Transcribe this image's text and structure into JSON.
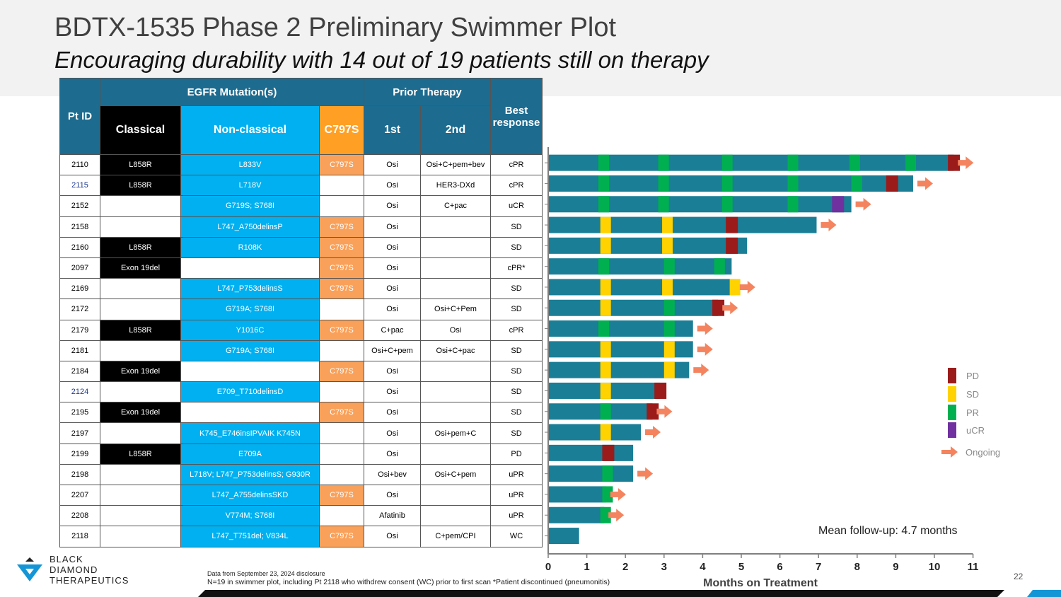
{
  "title": "BDTX-1535 Phase 2 Preliminary Swimmer Plot",
  "subtitle": "Encouraging durability with 14 out of 19 patients still on therapy",
  "table": {
    "headers": {
      "pt_id": "Pt ID",
      "egfr": "EGFR Mutation(s)",
      "prior": "Prior Therapy",
      "best": "Best response",
      "classical": "Classical",
      "nonclassical": "Non-classical",
      "c797s": "C797S",
      "first": "1st",
      "second": "2nd"
    },
    "rows": [
      {
        "id": "2110",
        "classical": "L858R",
        "nonclassical": "L833V",
        "c797s": "C797S",
        "first": "Osi",
        "second": "Osi+C+pem+bev",
        "best": "cPR"
      },
      {
        "id": "2115",
        "classical": "L858R",
        "nonclassical": "L718V",
        "c797s": "",
        "first": "Osi",
        "second": "HER3-DXd",
        "best": "cPR"
      },
      {
        "id": "2152",
        "classical": "",
        "nonclassical": "G719S; S768I",
        "c797s": "",
        "first": "Osi",
        "second": "C+pac",
        "best": "uCR"
      },
      {
        "id": "2158",
        "classical": "",
        "nonclassical": "L747_A750delinsP",
        "c797s": "C797S",
        "first": "Osi",
        "second": "",
        "best": "SD"
      },
      {
        "id": "2160",
        "classical": "L858R",
        "nonclassical": "R108K",
        "c797s": "C797S",
        "first": "Osi",
        "second": "",
        "best": "SD"
      },
      {
        "id": "2097",
        "classical": "Exon 19del",
        "nonclassical": "",
        "c797s": "C797S",
        "first": "Osi",
        "second": "",
        "best": "cPR*"
      },
      {
        "id": "2169",
        "classical": "",
        "nonclassical": "L747_P753delinsS",
        "c797s": "C797S",
        "first": "Osi",
        "second": "",
        "best": "SD"
      },
      {
        "id": "2172",
        "classical": "",
        "nonclassical": "G719A; S768I",
        "c797s": "",
        "first": "Osi",
        "second": "Osi+C+Pem",
        "best": "SD"
      },
      {
        "id": "2179",
        "classical": "L858R",
        "nonclassical": "Y1016C",
        "c797s": "C797S",
        "first": "C+pac",
        "second": "Osi",
        "best": "cPR"
      },
      {
        "id": "2181",
        "classical": "",
        "nonclassical": "G719A; S768I",
        "c797s": "",
        "first": "Osi+C+pem",
        "second": "Osi+C+pac",
        "best": "SD"
      },
      {
        "id": "2184",
        "classical": "Exon 19del",
        "nonclassical": "",
        "c797s": "C797S",
        "first": "Osi",
        "second": "",
        "best": "SD"
      },
      {
        "id": "2124",
        "classical": "",
        "nonclassical": "E709_T710delinsD",
        "c797s": "",
        "first": "Osi",
        "second": "",
        "best": "SD"
      },
      {
        "id": "2195",
        "classical": "Exon 19del",
        "nonclassical": "",
        "c797s": "C797S",
        "first": "Osi",
        "second": "",
        "best": "SD"
      },
      {
        "id": "2197",
        "classical": "",
        "nonclassical": "K745_E746insIPVAIK K745N",
        "c797s": "",
        "first": "Osi",
        "second": "Osi+pem+C",
        "best": "SD"
      },
      {
        "id": "2199",
        "classical": "L858R",
        "nonclassical": "E709A",
        "c797s": "",
        "first": "Osi",
        "second": "",
        "best": "PD"
      },
      {
        "id": "2198",
        "classical": "",
        "nonclassical": "L718V; L747_P753delinsS; G930R",
        "c797s": "",
        "first": "Osi+bev",
        "second": "Osi+C+pem",
        "best": "uPR"
      },
      {
        "id": "2207",
        "classical": "",
        "nonclassical": "L747_A755delinsSKD",
        "c797s": "C797S",
        "first": "Osi",
        "second": "",
        "best": "uPR"
      },
      {
        "id": "2208",
        "classical": "",
        "nonclassical": "V774M; S768I",
        "c797s": "",
        "first": "Afatinib",
        "second": "",
        "best": "uPR"
      },
      {
        "id": "2118",
        "classical": "",
        "nonclassical": "L747_T751del; V834L",
        "c797s": "C797S",
        "first": "Osi",
        "second": "C+pem/CPI",
        "best": "WC"
      }
    ]
  },
  "chart_data": {
    "type": "swimmer",
    "xlabel": "Months on Treatment",
    "xlim": [
      0,
      11
    ],
    "ticks": [
      "0",
      "1",
      "2",
      "3",
      "4",
      "5",
      "6",
      "7",
      "8",
      "9",
      "10",
      "11"
    ],
    "colors": {
      "bar": "#1a7e96",
      "PD": "#9b1b1b",
      "SD": "#ffd200",
      "PR": "#00b050",
      "uCR": "#7030a0",
      "arrow": "#f4845f"
    },
    "patients": [
      {
        "id": "2110",
        "duration": 10.5,
        "ongoing": true,
        "events": [
          {
            "t": 1.3,
            "type": "PR"
          },
          {
            "t": 2.85,
            "type": "PR"
          },
          {
            "t": 4.5,
            "type": "PR"
          },
          {
            "t": 6.2,
            "type": "PR"
          },
          {
            "t": 7.8,
            "type": "PR"
          },
          {
            "t": 9.25,
            "type": "PR"
          },
          {
            "t": 10.35,
            "type": "PD"
          }
        ]
      },
      {
        "id": "2115",
        "duration": 9.45,
        "ongoing": true,
        "events": [
          {
            "t": 1.3,
            "type": "PR"
          },
          {
            "t": 2.85,
            "type": "PR"
          },
          {
            "t": 4.5,
            "type": "PR"
          },
          {
            "t": 6.2,
            "type": "PR"
          },
          {
            "t": 7.85,
            "type": "PR"
          },
          {
            "t": 8.75,
            "type": "PD"
          }
        ]
      },
      {
        "id": "2152",
        "duration": 7.85,
        "ongoing": true,
        "events": [
          {
            "t": 1.3,
            "type": "PR"
          },
          {
            "t": 2.85,
            "type": "PR"
          },
          {
            "t": 4.5,
            "type": "PR"
          },
          {
            "t": 6.2,
            "type": "PR"
          },
          {
            "t": 7.35,
            "type": "uCR"
          }
        ]
      },
      {
        "id": "2158",
        "duration": 6.95,
        "ongoing": true,
        "events": [
          {
            "t": 1.35,
            "type": "SD"
          },
          {
            "t": 2.95,
            "type": "SD"
          },
          {
            "t": 4.6,
            "type": "PD"
          }
        ]
      },
      {
        "id": "2160",
        "duration": 5.15,
        "ongoing": false,
        "events": [
          {
            "t": 1.35,
            "type": "SD"
          },
          {
            "t": 2.95,
            "type": "SD"
          },
          {
            "t": 4.6,
            "type": "PD"
          }
        ]
      },
      {
        "id": "2097",
        "duration": 4.75,
        "ongoing": false,
        "events": [
          {
            "t": 1.3,
            "type": "PR"
          },
          {
            "t": 3.0,
            "type": "PR"
          },
          {
            "t": 4.3,
            "type": "PR"
          }
        ]
      },
      {
        "id": "2169",
        "duration": 4.85,
        "ongoing": true,
        "events": [
          {
            "t": 1.35,
            "type": "SD"
          },
          {
            "t": 2.95,
            "type": "SD"
          },
          {
            "t": 4.7,
            "type": "SD"
          }
        ]
      },
      {
        "id": "2172",
        "duration": 4.4,
        "ongoing": true,
        "events": [
          {
            "t": 1.35,
            "type": "SD"
          },
          {
            "t": 3.0,
            "type": "PR"
          },
          {
            "t": 4.25,
            "type": "PD"
          }
        ]
      },
      {
        "id": "2179",
        "duration": 3.75,
        "ongoing": true,
        "events": [
          {
            "t": 1.3,
            "type": "PR"
          },
          {
            "t": 3.0,
            "type": "PR"
          }
        ]
      },
      {
        "id": "2181",
        "duration": 3.75,
        "ongoing": true,
        "events": [
          {
            "t": 1.35,
            "type": "SD"
          },
          {
            "t": 3.0,
            "type": "SD"
          }
        ]
      },
      {
        "id": "2184",
        "duration": 3.65,
        "ongoing": true,
        "events": [
          {
            "t": 1.35,
            "type": "SD"
          },
          {
            "t": 3.0,
            "type": "SD"
          }
        ]
      },
      {
        "id": "2124",
        "duration": 2.9,
        "ongoing": false,
        "events": [
          {
            "t": 1.35,
            "type": "SD"
          },
          {
            "t": 2.75,
            "type": "PD"
          }
        ]
      },
      {
        "id": "2195",
        "duration": 2.7,
        "ongoing": true,
        "events": [
          {
            "t": 1.35,
            "type": "PR"
          },
          {
            "t": 2.55,
            "type": "PD"
          }
        ]
      },
      {
        "id": "2197",
        "duration": 2.4,
        "ongoing": true,
        "events": [
          {
            "t": 1.35,
            "type": "SD"
          }
        ]
      },
      {
        "id": "2199",
        "duration": 2.2,
        "ongoing": false,
        "events": [
          {
            "t": 1.4,
            "type": "PD"
          }
        ]
      },
      {
        "id": "2198",
        "duration": 2.2,
        "ongoing": true,
        "events": [
          {
            "t": 1.4,
            "type": "PR"
          }
        ]
      },
      {
        "id": "2207",
        "duration": 1.5,
        "ongoing": true,
        "events": [
          {
            "t": 1.4,
            "type": "PR"
          }
        ]
      },
      {
        "id": "2208",
        "duration": 1.45,
        "ongoing": true,
        "events": [
          {
            "t": 1.35,
            "type": "PR"
          }
        ]
      },
      {
        "id": "2118",
        "duration": 0.8,
        "ongoing": false,
        "events": []
      }
    ],
    "legend": [
      {
        "label": "PD",
        "type": "PD"
      },
      {
        "label": "SD",
        "type": "SD"
      },
      {
        "label": "PR",
        "type": "PR"
      },
      {
        "label": "uCR",
        "type": "uCR"
      },
      {
        "label": "Ongoing",
        "type": "arrow"
      }
    ],
    "annotation": "Mean follow-up: 4.7 months"
  },
  "footnote1": "Data from September 23, 2024 disclosure",
  "footnote2": "N=19 in swimmer plot, including Pt 2118 who withdrew consent (WC) prior to first scan *Patient discontinued (pneumonitis)",
  "page_number": "22",
  "logo": {
    "line1": "BLACK",
    "line2": "DIAMOND",
    "line3": "THERAPEUTICS"
  }
}
